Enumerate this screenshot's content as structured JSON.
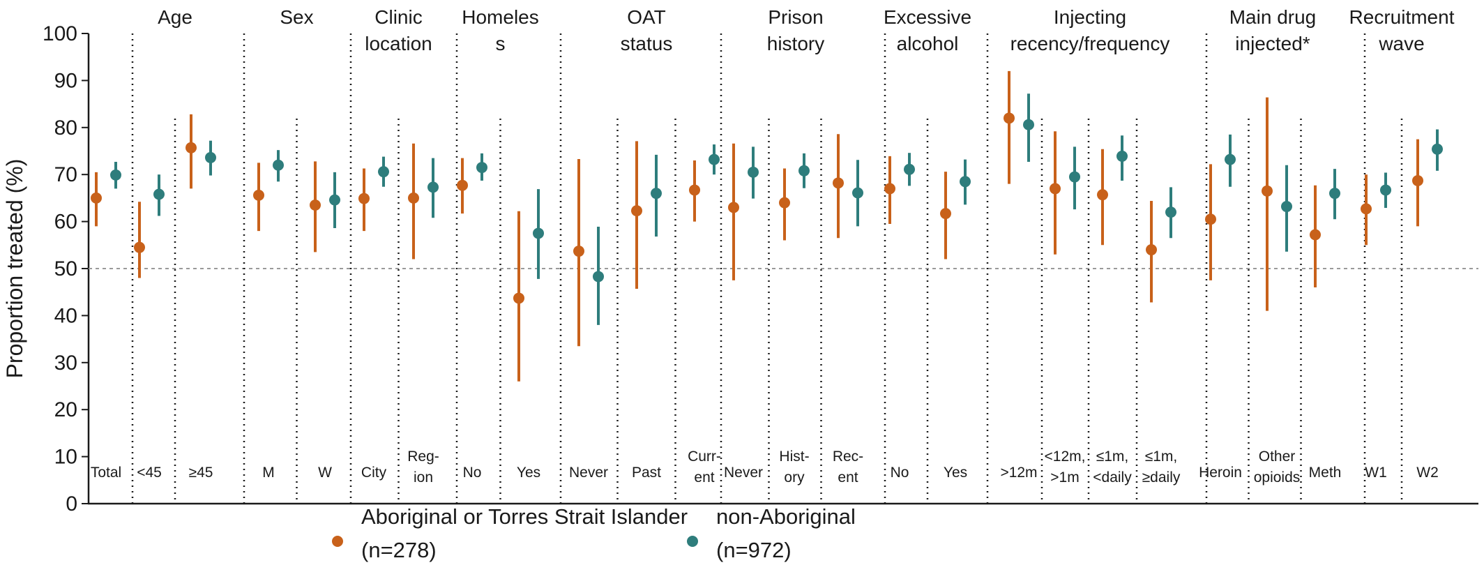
{
  "chart_data": {
    "type": "scatter",
    "subtype": "point-with-error-bars",
    "ylabel": "Proportion treated  (%)",
    "ylim": [
      0,
      100
    ],
    "yticks": [
      0,
      10,
      20,
      30,
      40,
      50,
      60,
      70,
      80,
      90,
      100
    ],
    "reference_line": 50,
    "grid": false,
    "series": [
      {
        "name": "Aboriginal or Torres Strait Islander",
        "name_note": "(n=278)",
        "color": "#c8611a",
        "values": [
          65,
          54.5,
          75.7,
          65.6,
          63.5,
          64.9,
          65,
          67.7,
          43.7,
          53.7,
          62.3,
          66.7,
          63,
          64,
          68.2,
          67,
          61.7,
          82,
          67,
          65.7,
          54,
          60.5,
          66.5,
          57.2,
          62.7,
          68.7
        ],
        "lower": [
          59,
          48,
          67,
          58,
          53.5,
          58,
          52,
          61.7,
          26,
          33.5,
          45.7,
          60,
          47.5,
          56,
          56.5,
          59.5,
          52,
          68,
          53,
          55,
          42.8,
          47.5,
          41,
          46,
          55,
          59
        ],
        "upper": [
          70.5,
          64.2,
          82.8,
          72.5,
          72.8,
          71.3,
          76.6,
          73.5,
          62.2,
          73.3,
          77.1,
          73,
          76.6,
          71.3,
          78.6,
          73.9,
          70.6,
          92,
          79.2,
          75.4,
          64.4,
          72.2,
          86.4,
          67.7,
          70,
          77.5
        ]
      },
      {
        "name": "non-Aboriginal",
        "name_note": "(n=972)",
        "color": "#2e7d7c",
        "values": [
          69.9,
          65.8,
          73.6,
          72,
          64.6,
          70.6,
          67.3,
          71.5,
          57.5,
          48.3,
          66,
          73.2,
          70.5,
          70.8,
          66.1,
          71.1,
          68.5,
          80.6,
          69.5,
          73.9,
          62,
          73.2,
          63.2,
          66,
          66.7,
          75.4
        ],
        "lower": [
          67,
          61.2,
          69.8,
          68.5,
          58.6,
          67.4,
          60.8,
          68.7,
          47.8,
          38,
          56.8,
          70,
          64.9,
          67.1,
          59,
          67.6,
          63.6,
          72.7,
          62.6,
          68.7,
          56.5,
          67.4,
          53.6,
          60.5,
          62.9,
          70.8
        ],
        "upper": [
          72.7,
          70,
          77.2,
          75.2,
          70.5,
          73.8,
          73.5,
          74.5,
          66.9,
          58.9,
          74.2,
          76.4,
          75.9,
          74.5,
          73.1,
          74.6,
          73.2,
          87.2,
          75.9,
          78.3,
          67.3,
          78.5,
          72,
          71.2,
          70.4,
          79.6
        ]
      }
    ],
    "categories": [
      "Total",
      "<45",
      "≥45",
      "M",
      "W",
      "City",
      "Reg-ion",
      "No",
      "Yes",
      "Never",
      "Past",
      "Curr-ent",
      "Never",
      "Hist-ory",
      "Rec-ent",
      "No",
      "Yes",
      ">12m",
      "<12m, >1m",
      "≤1m, <daily",
      "≤1m, ≥daily",
      "Heroin",
      "Other opioids",
      "Meth",
      "W1",
      "W2"
    ],
    "category_lines": [
      [
        "Total"
      ],
      [
        "<45"
      ],
      [
        "≥45"
      ],
      [
        "M"
      ],
      [
        "W"
      ],
      [
        "City"
      ],
      [
        "Reg-",
        "ion"
      ],
      [
        "No"
      ],
      [
        "Yes"
      ],
      [
        "Never"
      ],
      [
        "Past"
      ],
      [
        "Curr-",
        "ent"
      ],
      [
        "Never"
      ],
      [
        "Hist-",
        "ory"
      ],
      [
        "Rec-",
        "ent"
      ],
      [
        "No"
      ],
      [
        "Yes"
      ],
      [
        ">12m"
      ],
      [
        "<12m,",
        ">1m"
      ],
      [
        "≤1m,",
        "<daily"
      ],
      [
        "≤1m,",
        "≥daily"
      ],
      [
        "Heroin"
      ],
      [
        "Other",
        "opioids"
      ],
      [
        "Meth"
      ],
      [
        "W1"
      ],
      [
        "W2"
      ]
    ],
    "groups": [
      {
        "label": "",
        "label_lines": [],
        "categories": [
          "Total"
        ]
      },
      {
        "label": "Age",
        "label_lines": [
          "Age"
        ],
        "categories": [
          "<45",
          "≥45"
        ]
      },
      {
        "label": "Sex",
        "label_lines": [
          "Sex"
        ],
        "categories": [
          "M",
          "W"
        ]
      },
      {
        "label": "Clinic location",
        "label_lines": [
          "Clinic",
          "location"
        ],
        "categories": [
          "City",
          "Reg-ion"
        ]
      },
      {
        "label": "Homeless",
        "label_lines": [
          "Homeles",
          "s"
        ],
        "categories": [
          "No",
          "Yes"
        ]
      },
      {
        "label": "OAT status",
        "label_lines": [
          "OAT",
          "status"
        ],
        "categories": [
          "Never",
          "Past",
          "Curr-ent"
        ]
      },
      {
        "label": "Prison history",
        "label_lines": [
          "Prison",
          "history"
        ],
        "categories": [
          "Never",
          "Hist-ory",
          "Rec-ent"
        ]
      },
      {
        "label": "Excessive alcohol",
        "label_lines": [
          "Excessive",
          "alcohol"
        ],
        "categories": [
          "No",
          "Yes"
        ]
      },
      {
        "label": "Injecting recency/frequency",
        "label_lines": [
          "Injecting",
          "recency/frequency"
        ],
        "categories": [
          ">12m",
          "<12m, >1m",
          "≤1m, <daily",
          "≤1m, ≥daily"
        ]
      },
      {
        "label": "Main drug injected*",
        "label_lines": [
          "Main drug",
          "injected*"
        ],
        "categories": [
          "Heroin",
          "Other opioids",
          "Meth"
        ]
      },
      {
        "label": "Recruitment wave",
        "label_lines": [
          "Recruitment",
          "wave"
        ],
        "categories": [
          "W1",
          "W2"
        ]
      }
    ],
    "legend_position": "bottom"
  }
}
